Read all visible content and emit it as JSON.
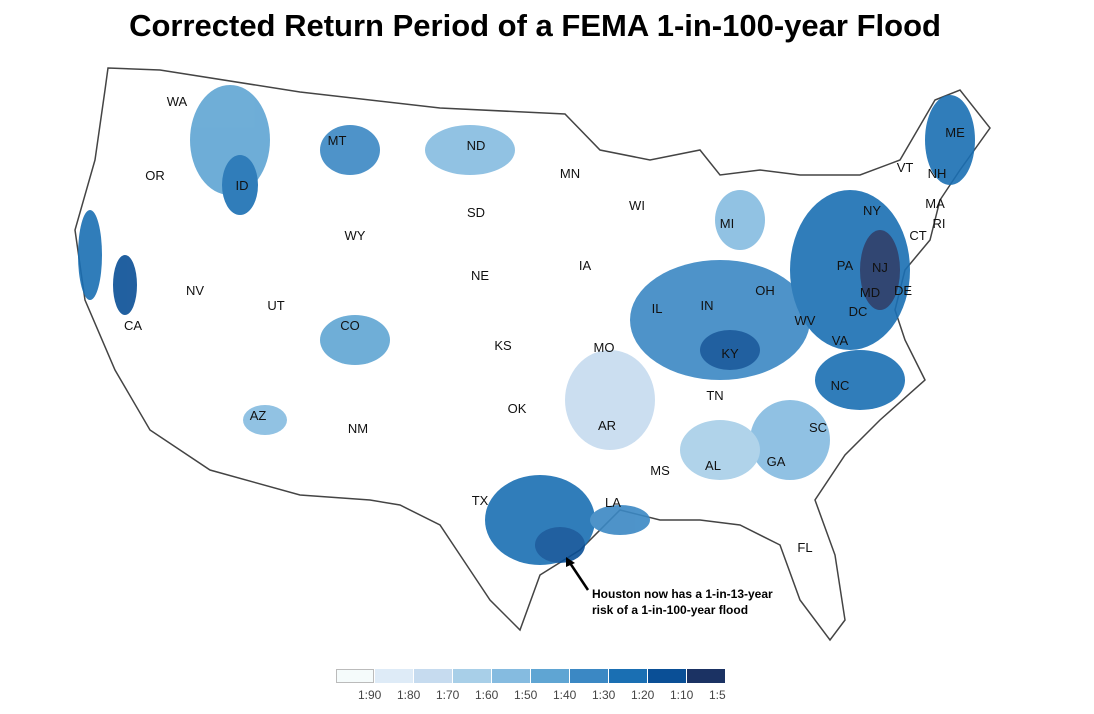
{
  "title": "Corrected Return Period of a FEMA 1-in-100-year Flood",
  "states": [
    [
      "WA",
      177,
      106
    ],
    [
      "OR",
      155,
      180
    ],
    [
      "CA",
      133,
      330
    ],
    [
      "NV",
      195,
      295
    ],
    [
      "ID",
      242,
      190
    ],
    [
      "MT",
      337,
      145
    ],
    [
      "WY",
      355,
      240
    ],
    [
      "UT",
      276,
      310
    ],
    [
      "AZ",
      258,
      420
    ],
    [
      "CO",
      350,
      330
    ],
    [
      "NM",
      358,
      433
    ],
    [
      "ND",
      476,
      150
    ],
    [
      "SD",
      476,
      217
    ],
    [
      "NE",
      480,
      280
    ],
    [
      "KS",
      503,
      350
    ],
    [
      "OK",
      517,
      413
    ],
    [
      "TX",
      480,
      505
    ],
    [
      "MN",
      570,
      178
    ],
    [
      "IA",
      585,
      270
    ],
    [
      "MO",
      604,
      352
    ],
    [
      "AR",
      607,
      430
    ],
    [
      "LA",
      613,
      507
    ],
    [
      "WI",
      637,
      210
    ],
    [
      "IL",
      657,
      313
    ],
    [
      "MS",
      660,
      475
    ],
    [
      "MI",
      727,
      228
    ],
    [
      "IN",
      707,
      310
    ],
    [
      "KY",
      730,
      358
    ],
    [
      "TN",
      715,
      400
    ],
    [
      "AL",
      713,
      470
    ],
    [
      "OH",
      765,
      295
    ],
    [
      "WV",
      805,
      325
    ],
    [
      "GA",
      776,
      466
    ],
    [
      "FL",
      805,
      552
    ],
    [
      "VA",
      840,
      345
    ],
    [
      "NC",
      840,
      390
    ],
    [
      "SC",
      818,
      432
    ],
    [
      "PA",
      845,
      270
    ],
    [
      "NY",
      872,
      215
    ],
    [
      "VT",
      905,
      172
    ],
    [
      "NH",
      937,
      178
    ],
    [
      "ME",
      955,
      137
    ],
    [
      "MA",
      935,
      208
    ],
    [
      "CT",
      918,
      240
    ],
    [
      "RI",
      939,
      228
    ],
    [
      "NJ",
      880,
      272
    ],
    [
      "MD",
      870,
      297
    ],
    [
      "DE",
      903,
      295
    ],
    [
      "DC",
      858,
      316
    ]
  ],
  "annotation": {
    "line1": "Houston now has a 1-in-13-year",
    "line2": "risk of a 1-in-100-year flood"
  },
  "legend": {
    "labels": [
      "1:90",
      "1:80",
      "1:70",
      "1:60",
      "1:50",
      "1:40",
      "1:30",
      "1:20",
      "1:10",
      "1:5"
    ],
    "colors": [
      "#f5fbfb",
      "#deebf7",
      "#c6dbef",
      "#a8cfe8",
      "#85bbe0",
      "#5fa5d3",
      "#3b88c4",
      "#1a6fb3",
      "#0a4f96",
      "#1b3263"
    ]
  }
}
